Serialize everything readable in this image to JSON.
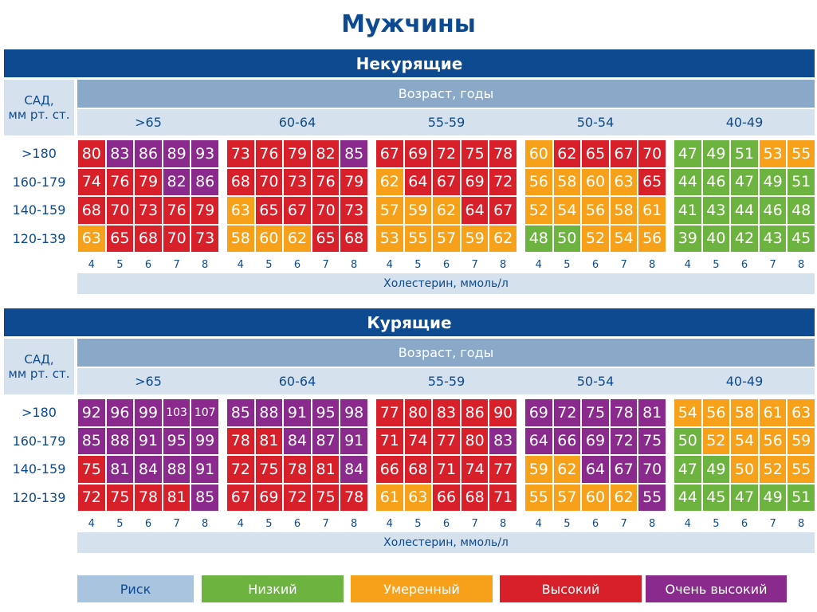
{
  "title": "Мужчины",
  "legend": [
    {
      "label": "Риск",
      "color": "#a9c4de"
    },
    {
      "label": "Низкий",
      "color": "#6db33f"
    },
    {
      "label": "Умеренный",
      "color": "#f7a11a"
    },
    {
      "label": "Высокий",
      "color": "#d8202b"
    },
    {
      "label": "Очень высокий",
      "color": "#8a2a8c"
    }
  ],
  "panels": [
    {
      "title": "Некурящие",
      "sbp_label": [
        "САД,",
        "мм рт. ст."
      ],
      "age_label": "Возраст, годы",
      "cholesterol_label": "Холестерин, ммоль/л",
      "sbp_rows": [
        ">180",
        "160-179",
        "140-159",
        "120-139"
      ],
      "cholesterol_ticks": [
        4,
        5,
        6,
        7,
        8
      ],
      "groups": [
        {
          "age": ">65",
          "values": [
            [
              80,
              83,
              86,
              89,
              93
            ],
            [
              74,
              76,
              79,
              82,
              86
            ],
            [
              68,
              70,
              73,
              76,
              79
            ],
            [
              63,
              65,
              68,
              70,
              73
            ]
          ],
          "levels": [
            [
              3,
              4,
              4,
              4,
              4
            ],
            [
              3,
              3,
              3,
              4,
              4
            ],
            [
              3,
              3,
              3,
              3,
              3
            ],
            [
              2,
              3,
              3,
              3,
              3
            ]
          ]
        },
        {
          "age": "60-64",
          "values": [
            [
              73,
              76,
              79,
              82,
              85
            ],
            [
              68,
              70,
              73,
              76,
              79
            ],
            [
              63,
              65,
              67,
              70,
              73
            ],
            [
              58,
              60,
              62,
              65,
              68
            ]
          ],
          "levels": [
            [
              3,
              3,
              3,
              3,
              4
            ],
            [
              3,
              3,
              3,
              3,
              3
            ],
            [
              2,
              3,
              3,
              3,
              3
            ],
            [
              2,
              2,
              2,
              3,
              3
            ]
          ]
        },
        {
          "age": "55-59",
          "values": [
            [
              67,
              69,
              72,
              75,
              78
            ],
            [
              62,
              64,
              67,
              69,
              72
            ],
            [
              57,
              59,
              62,
              64,
              67
            ],
            [
              53,
              55,
              57,
              59,
              62
            ]
          ],
          "levels": [
            [
              3,
              3,
              3,
              3,
              3
            ],
            [
              2,
              3,
              3,
              3,
              3
            ],
            [
              2,
              2,
              2,
              3,
              3
            ],
            [
              2,
              2,
              2,
              2,
              2
            ]
          ]
        },
        {
          "age": "50-54",
          "values": [
            [
              60,
              62,
              65,
              67,
              70
            ],
            [
              56,
              58,
              60,
              63,
              65
            ],
            [
              52,
              54,
              56,
              58,
              61
            ],
            [
              48,
              50,
              52,
              54,
              56
            ]
          ],
          "levels": [
            [
              2,
              3,
              3,
              3,
              3
            ],
            [
              2,
              2,
              2,
              2,
              3
            ],
            [
              2,
              2,
              2,
              2,
              2
            ],
            [
              1,
              1,
              2,
              2,
              2
            ]
          ]
        },
        {
          "age": "40-49",
          "values": [
            [
              47,
              49,
              51,
              53,
              55
            ],
            [
              44,
              46,
              47,
              49,
              51
            ],
            [
              41,
              43,
              44,
              46,
              48
            ],
            [
              39,
              40,
              42,
              43,
              45
            ]
          ],
          "levels": [
            [
              1,
              1,
              1,
              2,
              2
            ],
            [
              1,
              1,
              1,
              1,
              1
            ],
            [
              1,
              1,
              1,
              1,
              1
            ],
            [
              1,
              1,
              1,
              1,
              1
            ]
          ]
        }
      ]
    },
    {
      "title": "Курящие",
      "sbp_label": [
        "САД,",
        "мм рт. ст."
      ],
      "age_label": "Возраст, годы",
      "cholesterol_label": "Холестерин, ммоль/л",
      "sbp_rows": [
        ">180",
        "160-179",
        "140-159",
        "120-139"
      ],
      "cholesterol_ticks": [
        4,
        5,
        6,
        7,
        8
      ],
      "groups": [
        {
          "age": ">65",
          "values": [
            [
              92,
              96,
              99,
              103,
              107
            ],
            [
              85,
              88,
              91,
              95,
              99
            ],
            [
              75,
              81,
              84,
              88,
              91
            ],
            [
              72,
              75,
              78,
              81,
              85
            ]
          ],
          "levels": [
            [
              4,
              4,
              4,
              4,
              4
            ],
            [
              4,
              4,
              4,
              4,
              4
            ],
            [
              3,
              4,
              4,
              4,
              4
            ],
            [
              3,
              3,
              3,
              3,
              4
            ]
          ]
        },
        {
          "age": "60-64",
          "values": [
            [
              85,
              88,
              91,
              95,
              98
            ],
            [
              78,
              81,
              84,
              87,
              91
            ],
            [
              72,
              75,
              78,
              81,
              84
            ],
            [
              67,
              69,
              72,
              75,
              78
            ]
          ],
          "levels": [
            [
              4,
              4,
              4,
              4,
              4
            ],
            [
              3,
              3,
              4,
              4,
              4
            ],
            [
              3,
              3,
              3,
              3,
              4
            ],
            [
              3,
              3,
              3,
              3,
              3
            ]
          ]
        },
        {
          "age": "55-59",
          "values": [
            [
              77,
              80,
              83,
              86,
              90
            ],
            [
              71,
              74,
              77,
              80,
              83
            ],
            [
              66,
              68,
              71,
              74,
              77
            ],
            [
              61,
              63,
              66,
              68,
              71
            ]
          ],
          "levels": [
            [
              3,
              3,
              3,
              3,
              3
            ],
            [
              3,
              3,
              3,
              3,
              4
            ],
            [
              3,
              3,
              3,
              3,
              3
            ],
            [
              2,
              2,
              3,
              3,
              3
            ]
          ]
        },
        {
          "age": "50-54",
          "values": [
            [
              69,
              72,
              75,
              78,
              81
            ],
            [
              64,
              66,
              69,
              72,
              75
            ],
            [
              59,
              62,
              64,
              67,
              70
            ],
            [
              55,
              57,
              60,
              62,
              55
            ]
          ],
          "levels": [
            [
              4,
              4,
              4,
              4,
              4
            ],
            [
              4,
              4,
              4,
              4,
              4
            ],
            [
              2,
              2,
              4,
              4,
              4
            ],
            [
              2,
              2,
              2,
              2,
              4
            ]
          ]
        },
        {
          "age": "40-49",
          "values": [
            [
              54,
              56,
              58,
              61,
              63
            ],
            [
              50,
              52,
              54,
              56,
              59
            ],
            [
              47,
              49,
              50,
              52,
              55
            ],
            [
              44,
              45,
              47,
              49,
              51
            ]
          ],
          "levels": [
            [
              2,
              2,
              2,
              2,
              2
            ],
            [
              1,
              2,
              2,
              2,
              2
            ],
            [
              1,
              1,
              2,
              2,
              2
            ],
            [
              1,
              1,
              1,
              1,
              1
            ]
          ]
        }
      ]
    }
  ]
}
